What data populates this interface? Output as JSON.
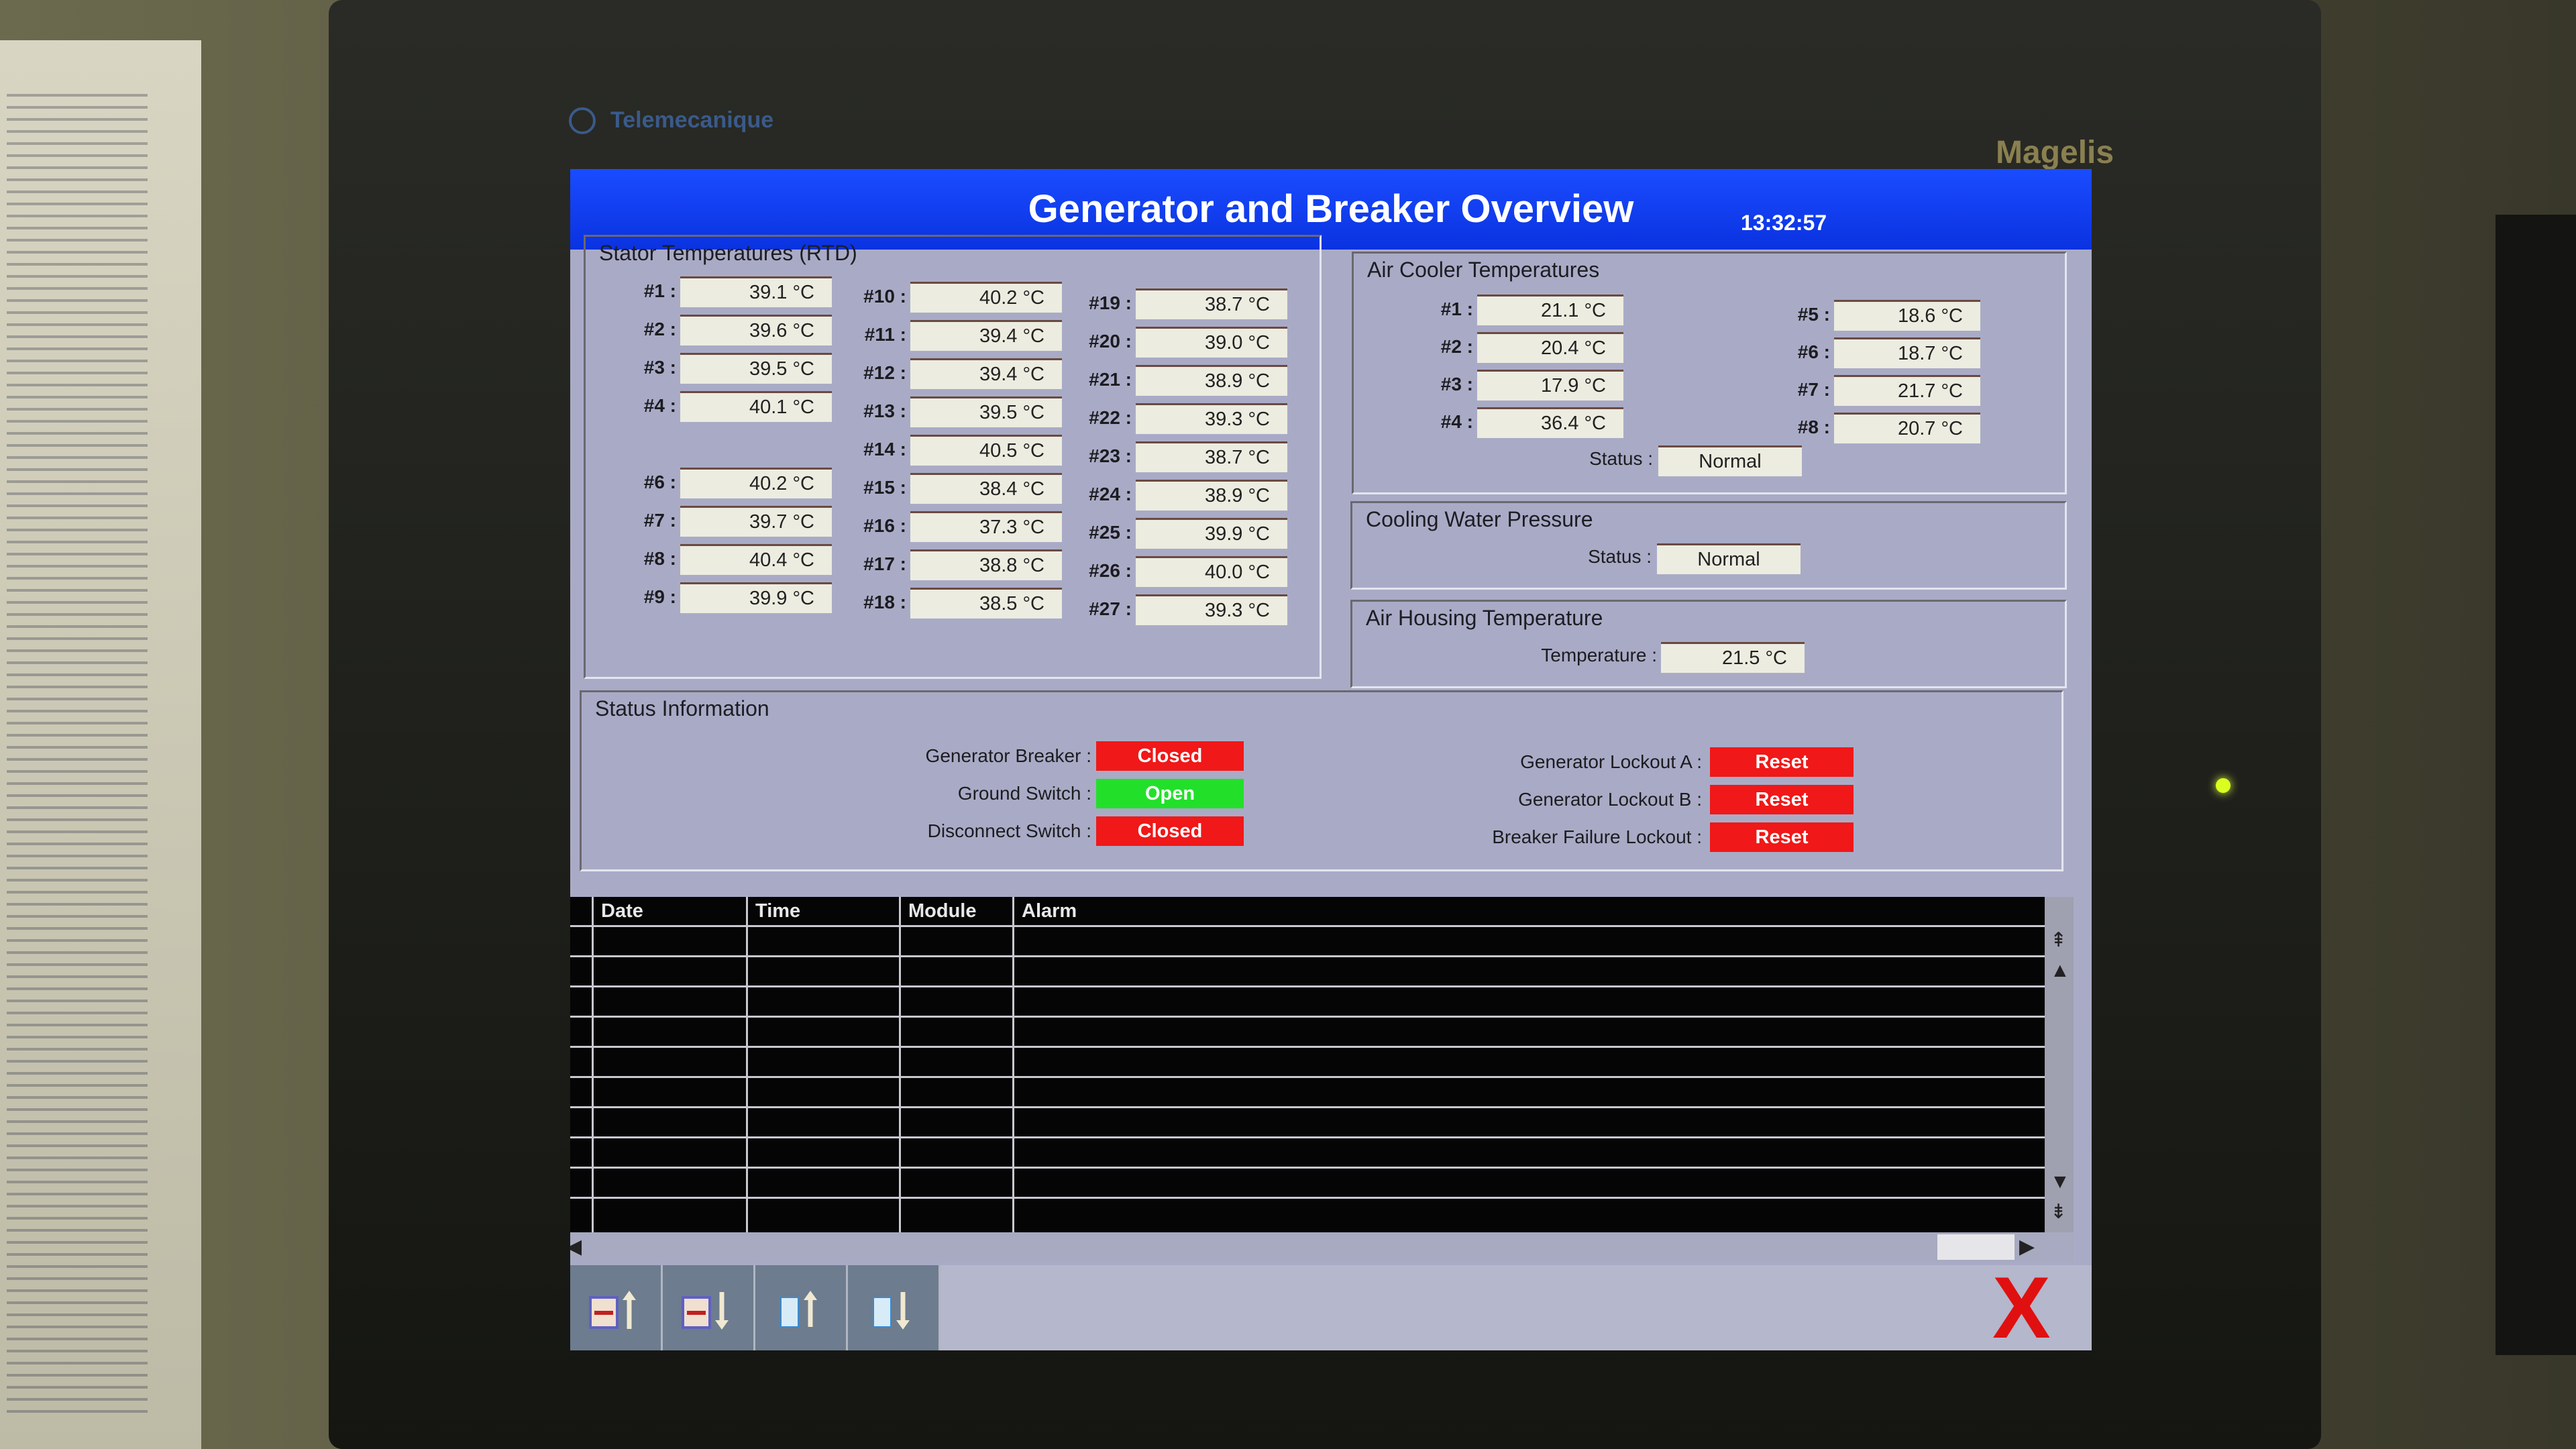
{
  "device": {
    "brand": "Telemecanique",
    "model": "Magelis"
  },
  "header": {
    "title": "Generator and Breaker Overview",
    "time": "13:32:57"
  },
  "stator": {
    "title": "Stator Temperatures (RTD)",
    "sensors": [
      {
        "label": "#1 :",
        "value": "39.1 °C"
      },
      {
        "label": "#2 :",
        "value": "39.6 °C"
      },
      {
        "label": "#3 :",
        "value": "39.5 °C"
      },
      {
        "label": "#4 :",
        "value": "40.1 °C"
      },
      null,
      {
        "label": "#6 :",
        "value": "40.2 °C"
      },
      {
        "label": "#7 :",
        "value": "39.7 °C"
      },
      {
        "label": "#8 :",
        "value": "40.4 °C"
      },
      {
        "label": "#9 :",
        "value": "39.9 °C"
      },
      {
        "label": "#10 :",
        "value": "40.2 °C"
      },
      {
        "label": "#11 :",
        "value": "39.4 °C"
      },
      {
        "label": "#12 :",
        "value": "39.4 °C"
      },
      {
        "label": "#13 :",
        "value": "39.5 °C"
      },
      {
        "label": "#14 :",
        "value": "40.5 °C"
      },
      {
        "label": "#15 :",
        "value": "38.4 °C"
      },
      {
        "label": "#16 :",
        "value": "37.3 °C"
      },
      {
        "label": "#17 :",
        "value": "38.8 °C"
      },
      {
        "label": "#18 :",
        "value": "38.5 °C"
      },
      {
        "label": "#19 :",
        "value": "38.7 °C"
      },
      {
        "label": "#20 :",
        "value": "39.0 °C"
      },
      {
        "label": "#21 :",
        "value": "38.9 °C"
      },
      {
        "label": "#22 :",
        "value": "39.3 °C"
      },
      {
        "label": "#23 :",
        "value": "38.7 °C"
      },
      {
        "label": "#24 :",
        "value": "38.9 °C"
      },
      {
        "label": "#25 :",
        "value": "39.9 °C"
      },
      {
        "label": "#26 :",
        "value": "40.0 °C"
      },
      {
        "label": "#27 :",
        "value": "39.3 °C"
      }
    ]
  },
  "air_cooler": {
    "title": "Air Cooler Temperatures",
    "sensors": [
      {
        "label": "#1 :",
        "value": "21.1 °C"
      },
      {
        "label": "#2 :",
        "value": "20.4 °C"
      },
      {
        "label": "#3 :",
        "value": "17.9 °C"
      },
      {
        "label": "#4 :",
        "value": "36.4 °C"
      },
      {
        "label": "#5 :",
        "value": "18.6 °C"
      },
      {
        "label": "#6 :",
        "value": "18.7 °C"
      },
      {
        "label": "#7 :",
        "value": "21.7 °C"
      },
      {
        "label": "#8 :",
        "value": "20.7 °C"
      }
    ],
    "status_label": "Status :",
    "status_value": "Normal"
  },
  "cooling_water": {
    "title": "Cooling Water Pressure",
    "status_label": "Status :",
    "status_value": "Normal"
  },
  "air_housing": {
    "title": "Air Housing Temperature",
    "temp_label": "Temperature :",
    "temp_value": "21.5 °C"
  },
  "status_info": {
    "title": "Status Information",
    "left": [
      {
        "label": "Generator Breaker :",
        "state": "Closed",
        "color": "#f01818"
      },
      {
        "label": "Ground Switch :",
        "state": "Open",
        "color": "#22e02a"
      },
      {
        "label": "Disconnect Switch :",
        "state": "Closed",
        "color": "#f01818"
      }
    ],
    "right": [
      {
        "label": "Generator Lockout A :",
        "state": "Reset",
        "color": "#f01818"
      },
      {
        "label": "Generator Lockout B :",
        "state": "Reset",
        "color": "#f01818"
      },
      {
        "label": "Breaker Failure Lockout :",
        "state": "Reset",
        "color": "#f01818"
      }
    ]
  },
  "alarm_table": {
    "columns": [
      "Date",
      "Time",
      "Module",
      "Alarm"
    ],
    "rows": []
  },
  "toolbar": {
    "buttons": [
      "alarm-list-up-icon",
      "alarm-list-down-icon",
      "page-up-icon",
      "page-down-icon"
    ],
    "close": "close-icon"
  }
}
